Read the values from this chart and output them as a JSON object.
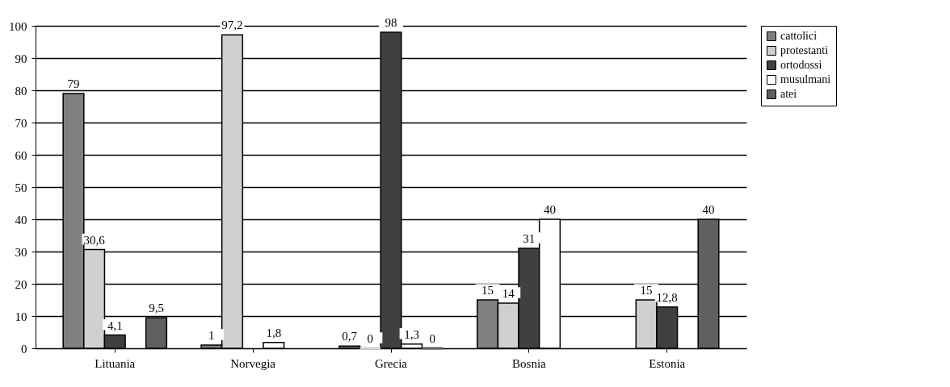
{
  "chart_data": {
    "type": "bar",
    "categories": [
      "Lituania",
      "Norvegia",
      "Grecia",
      "Bosnia",
      "Estonia"
    ],
    "series": [
      {
        "name": "cattolici",
        "color": "#808080",
        "values": [
          79,
          1,
          0.7,
          15,
          null
        ],
        "value_labels": [
          "79",
          "1",
          "0,7",
          "15",
          null
        ]
      },
      {
        "name": "protestanti",
        "color": "#d0d0d0",
        "values": [
          30.6,
          97.2,
          0,
          14,
          15
        ],
        "value_labels": [
          "30,6",
          "97,2",
          "0",
          "14",
          "15"
        ]
      },
      {
        "name": "ortodossi",
        "color": "#404040",
        "values": [
          4.1,
          null,
          98,
          31,
          12.8
        ],
        "value_labels": [
          "4,1",
          null,
          "98",
          "31",
          "12,8"
        ]
      },
      {
        "name": "musulmani",
        "color": "#ffffff",
        "values": [
          null,
          1.8,
          1.3,
          40,
          null
        ],
        "value_labels": [
          null,
          "1,8",
          "1,3",
          "40",
          null
        ]
      },
      {
        "name": "atei",
        "color": "#606060",
        "values": [
          9.5,
          null,
          0,
          null,
          40
        ],
        "value_labels": [
          "9,5",
          null,
          "0",
          null,
          "40"
        ]
      }
    ],
    "ylim": [
      0,
      100
    ],
    "yticks": [
      0,
      10,
      20,
      30,
      40,
      50,
      60,
      70,
      80,
      90,
      100
    ],
    "grid": "y",
    "legend": "right"
  }
}
